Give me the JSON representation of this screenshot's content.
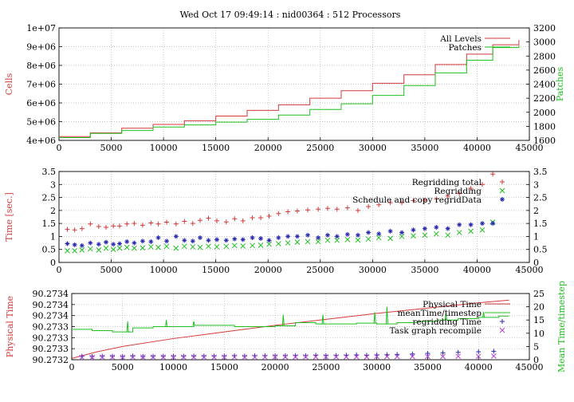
{
  "title": "Wed Oct 17 09:49:14 : nid00364 : 512 Processors",
  "chart_data": [
    {
      "type": "line",
      "xlim": [
        0,
        45000
      ],
      "xticks": [
        0,
        5000,
        10000,
        15000,
        20000,
        25000,
        30000,
        35000,
        40000,
        45000
      ],
      "ylabel": "Cells",
      "ylim": [
        4000000,
        10000000
      ],
      "yticks": [
        "4e+06",
        "5e+06",
        "6e+06",
        "7e+06",
        "8e+06",
        "9e+06",
        "1e+07"
      ],
      "y2label": "Patches",
      "y2lim": [
        1600,
        3200
      ],
      "y2ticks": [
        1600,
        1800,
        2000,
        2200,
        2400,
        2600,
        2800,
        3000,
        3200
      ],
      "grid": true,
      "legend_position": "top-right",
      "series": [
        {
          "name": "All Levels",
          "axis": "left",
          "color": "#d43a3a",
          "style": "step",
          "x": [
            0,
            3000,
            6000,
            9000,
            12000,
            15000,
            18000,
            21000,
            24000,
            27000,
            30000,
            33000,
            36000,
            39000,
            41500,
            44000
          ],
          "y": [
            4200000,
            4400000,
            4650000,
            4850000,
            5050000,
            5300000,
            5600000,
            5900000,
            6250000,
            6650000,
            7050000,
            7500000,
            8050000,
            8600000,
            9100000,
            9350000
          ]
        },
        {
          "name": "Patches",
          "axis": "right",
          "color": "#20c020",
          "style": "step",
          "x": [
            0,
            3000,
            6000,
            9000,
            12000,
            15000,
            18000,
            21000,
            24000,
            27000,
            30000,
            33000,
            36000,
            39000,
            41500,
            44000
          ],
          "y": [
            1640,
            1700,
            1740,
            1790,
            1820,
            1860,
            1900,
            1960,
            2040,
            2120,
            2240,
            2380,
            2560,
            2740,
            2920,
            2950
          ]
        }
      ]
    },
    {
      "type": "scatter",
      "xlim": [
        0,
        45000
      ],
      "xticks": [
        0,
        5000,
        10000,
        15000,
        20000,
        25000,
        30000,
        35000,
        40000,
        45000
      ],
      "ylabel": "Time [sec.]",
      "ylim": [
        0,
        3.5
      ],
      "yticks": [
        "0",
        "0.5",
        "1",
        "1.5",
        "2",
        "2.5",
        "3",
        "3.5"
      ],
      "y2lim": [
        0,
        3.5
      ],
      "y2ticks": [
        "0",
        "0.5",
        "1",
        "1.5",
        "2",
        "2.5",
        "3",
        "3.5"
      ],
      "grid": true,
      "legend_position": "top-right",
      "series": [
        {
          "name": "Regridding total",
          "marker": "+",
          "color": "#d43a3a",
          "x": [
            800,
            1500,
            2200,
            3000,
            3800,
            4500,
            5200,
            5800,
            6500,
            7200,
            8000,
            8800,
            9500,
            10300,
            11200,
            12000,
            12800,
            13500,
            14300,
            15100,
            16000,
            16800,
            17600,
            18500,
            19300,
            20100,
            21000,
            21900,
            22800,
            23800,
            24800,
            25700,
            26600,
            27600,
            28600,
            29600,
            30600,
            31700,
            32800,
            33900,
            35000,
            36100,
            37200,
            38300,
            39400,
            40500,
            41500
          ],
          "y": [
            1.27,
            1.25,
            1.3,
            1.48,
            1.38,
            1.35,
            1.4,
            1.4,
            1.48,
            1.5,
            1.43,
            1.52,
            1.48,
            1.55,
            1.48,
            1.58,
            1.5,
            1.62,
            1.7,
            1.6,
            1.56,
            1.68,
            1.6,
            1.72,
            1.72,
            1.78,
            1.88,
            1.95,
            1.98,
            2.02,
            2.05,
            2.08,
            2.05,
            2.1,
            2.0,
            2.15,
            2.22,
            2.3,
            2.3,
            2.38,
            2.4,
            2.45,
            2.55,
            2.65,
            2.85,
            3.0,
            3.4
          ]
        },
        {
          "name": "Regridding",
          "marker": "x",
          "color": "#20c020",
          "x": [
            800,
            1500,
            2200,
            3000,
            3800,
            4500,
            5200,
            5800,
            6500,
            7200,
            8000,
            8800,
            9500,
            10300,
            11200,
            12000,
            12800,
            13500,
            14300,
            15100,
            16000,
            16800,
            17600,
            18500,
            19300,
            20100,
            21000,
            21900,
            22800,
            23800,
            24800,
            25700,
            26600,
            27600,
            28600,
            29600,
            30600,
            31700,
            32800,
            33900,
            35000,
            36100,
            37200,
            38300,
            39400,
            40500,
            41500
          ],
          "y": [
            0.45,
            0.45,
            0.48,
            0.52,
            0.48,
            0.55,
            0.5,
            0.55,
            0.58,
            0.55,
            0.56,
            0.6,
            0.58,
            0.62,
            0.55,
            0.62,
            0.6,
            0.58,
            0.62,
            0.6,
            0.62,
            0.65,
            0.63,
            0.65,
            0.66,
            0.7,
            0.72,
            0.75,
            0.78,
            0.8,
            0.8,
            0.85,
            0.85,
            0.88,
            0.86,
            0.9,
            0.95,
            0.92,
            1.0,
            1.02,
            1.05,
            1.1,
            1.05,
            1.15,
            1.2,
            1.25,
            1.55
          ]
        },
        {
          "name": "Schedule and copy regridData",
          "marker": "*",
          "color": "#2a2ab0",
          "x": [
            800,
            1500,
            2200,
            3000,
            3800,
            4500,
            5200,
            5800,
            6500,
            7200,
            8000,
            8800,
            9500,
            10300,
            11200,
            12000,
            12800,
            13500,
            14300,
            15100,
            16000,
            16800,
            17600,
            18500,
            19300,
            20100,
            21000,
            21900,
            22800,
            23800,
            24800,
            25700,
            26600,
            27600,
            28600,
            29600,
            30600,
            31700,
            32800,
            33900,
            35000,
            36100,
            37200,
            38300,
            39400,
            40500,
            41500
          ],
          "y": [
            0.72,
            0.68,
            0.65,
            0.75,
            0.7,
            0.78,
            0.7,
            0.72,
            0.8,
            0.75,
            0.82,
            0.8,
            0.95,
            0.82,
            1.0,
            0.85,
            0.82,
            0.95,
            0.85,
            0.88,
            0.85,
            0.9,
            0.88,
            0.95,
            0.92,
            0.85,
            0.95,
            1.0,
            1.0,
            1.05,
            0.95,
            1.05,
            1.0,
            1.08,
            1.05,
            1.15,
            1.1,
            1.2,
            1.15,
            1.25,
            1.3,
            1.35,
            1.3,
            1.45,
            1.45,
            1.5,
            1.5
          ]
        }
      ]
    },
    {
      "type": "line",
      "xlim": [
        0,
        45000
      ],
      "xticks": [
        0,
        5000,
        10000,
        15000,
        20000,
        25000,
        30000,
        35000,
        40000,
        45000
      ],
      "ylabel": "Physical Time",
      "yticks": [
        "90.2732",
        "90.2733",
        "90.2733",
        "90.2733",
        "90.2734",
        "90.2734",
        "90.2734"
      ],
      "y2label": "Mean Time/timestep",
      "y2lim": [
        0,
        25
      ],
      "y2ticks": [
        0,
        5,
        10,
        15,
        20,
        25
      ],
      "grid": true,
      "legend_position": "top-right",
      "series": [
        {
          "name": "Physical Time",
          "axis": "left",
          "color": "#d43a3a",
          "style": "line",
          "x": [
            0,
            2500,
            5000,
            10000,
            15000,
            20000,
            25000,
            30000,
            35000,
            40000,
            43000
          ],
          "y_fraction_of_axis": [
            0.02,
            0.12,
            0.2,
            0.32,
            0.42,
            0.52,
            0.61,
            0.7,
            0.78,
            0.86,
            0.9
          ]
        },
        {
          "name": "meanTime/timestep",
          "axis": "right",
          "color": "#20c020",
          "style": "line",
          "x": [
            0,
            2000,
            4000,
            6000,
            8000,
            10000,
            12000,
            14000,
            16000,
            18000,
            20000,
            22000,
            24000,
            26000,
            28000,
            30000,
            32000,
            34000,
            36000,
            38000,
            40000,
            42000,
            43000
          ],
          "y": [
            11.5,
            11,
            10.5,
            12,
            12.5,
            12.5,
            13,
            13,
            12.5,
            12.5,
            12.8,
            14,
            13.5,
            13.5,
            13.8,
            13.5,
            14,
            14.5,
            15,
            15.5,
            16,
            16.5,
            16.5
          ],
          "spikes": [
            {
              "x": 5500,
              "y": 14.5
            },
            {
              "x": 9300,
              "y": 15
            },
            {
              "x": 12000,
              "y": 14.5
            },
            {
              "x": 20800,
              "y": 17
            },
            {
              "x": 24700,
              "y": 17
            },
            {
              "x": 29800,
              "y": 18
            },
            {
              "x": 31000,
              "y": 20
            },
            {
              "x": 36800,
              "y": 17.5
            },
            {
              "x": 40500,
              "y": 18
            }
          ]
        },
        {
          "name": "regridding Time",
          "axis": "right",
          "color": "#2a2ab0",
          "marker": "+",
          "x": [
            1000,
            2000,
            3000,
            4000,
            5000,
            6000,
            7000,
            8000,
            9000,
            10000,
            11000,
            12000,
            13000,
            14000,
            15000,
            16000,
            17000,
            18000,
            19000,
            20000,
            21000,
            22000,
            23000,
            24000,
            25000,
            26000,
            27000,
            28000,
            29000,
            30000,
            31000,
            32000,
            33500,
            35000,
            36500,
            38000,
            40000,
            41500
          ],
          "y": [
            1.3,
            1.2,
            1.3,
            1.3,
            1.2,
            1.4,
            1.2,
            1.3,
            1.3,
            1.3,
            1.3,
            1.4,
            1.4,
            1.4,
            1.4,
            1.5,
            1.4,
            1.5,
            1.5,
            1.5,
            1.5,
            1.6,
            1.5,
            1.7,
            1.6,
            1.6,
            1.7,
            1.8,
            1.7,
            1.8,
            1.9,
            2.0,
            2.2,
            2.4,
            2.6,
            2.8,
            3.0,
            3.2
          ]
        },
        {
          "name": "Task graph recompile",
          "axis": "right",
          "color": "#b040d0",
          "marker": "x",
          "x": [
            1000,
            2000,
            3000,
            4000,
            5000,
            6000,
            7000,
            8000,
            9000,
            10000,
            11000,
            12000,
            13000,
            14000,
            15000,
            16000,
            17000,
            18000,
            19000,
            20000,
            21000,
            22000,
            23000,
            24000,
            25000,
            26000,
            27000,
            28000,
            29000,
            30000,
            31000,
            32000,
            33500,
            35000,
            36500,
            38000,
            40000,
            41500
          ],
          "y": [
            0.9,
            0.9,
            1.0,
            1.0,
            0.9,
            1.0,
            1.0,
            1.0,
            1.0,
            1.0,
            1.0,
            1.0,
            1.0,
            1.0,
            1.0,
            1.0,
            1.0,
            1.0,
            1.0,
            1.1,
            1.1,
            1.1,
            1.1,
            1.1,
            1.1,
            1.1,
            1.1,
            1.1,
            1.1,
            1.2,
            1.2,
            1.2,
            1.2,
            1.2,
            1.2,
            1.3,
            1.3,
            1.4
          ]
        }
      ]
    }
  ]
}
